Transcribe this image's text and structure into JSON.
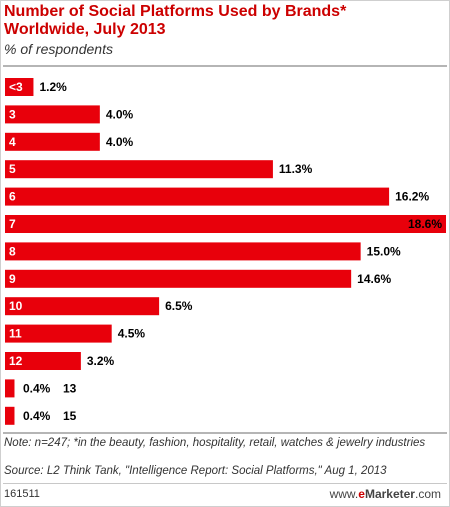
{
  "header": {
    "title": "Number of Social Platforms Used by Brands* Worldwide, July 2013",
    "subtitle": "% of respondents"
  },
  "footer": {
    "note": "Note: n=247; *in the beauty, fashion, hospitality, retail, watches & jewelry industries",
    "source": "Source: L2 Think Tank, \"Intelligence Report: Social Platforms,\" Aug 1, 2013",
    "chart_id": "161511",
    "brand_www": "www.",
    "brand_e": "e",
    "brand_name": "Marketer",
    "brand_tld": ".com"
  },
  "colors": {
    "bar": "#e8000b",
    "title": "#cc0000"
  },
  "chart_data": {
    "type": "bar",
    "orientation": "horizontal",
    "categories": [
      "<3",
      "3",
      "4",
      "5",
      "6",
      "7",
      "8",
      "9",
      "10",
      "11",
      "12",
      "13",
      "15"
    ],
    "values": [
      1.2,
      4.0,
      4.0,
      11.3,
      16.2,
      18.6,
      15.0,
      14.6,
      6.5,
      4.5,
      3.2,
      0.4,
      0.4
    ],
    "value_labels": [
      "1.2%",
      "4.0%",
      "4.0%",
      "11.3%",
      "16.2%",
      "18.6%",
      "15.0%",
      "14.6%",
      "6.5%",
      "4.5%",
      "3.2%",
      "0.4%",
      "0.4%"
    ],
    "xlim": [
      0,
      18.6
    ],
    "grid": false,
    "legend": "none"
  }
}
